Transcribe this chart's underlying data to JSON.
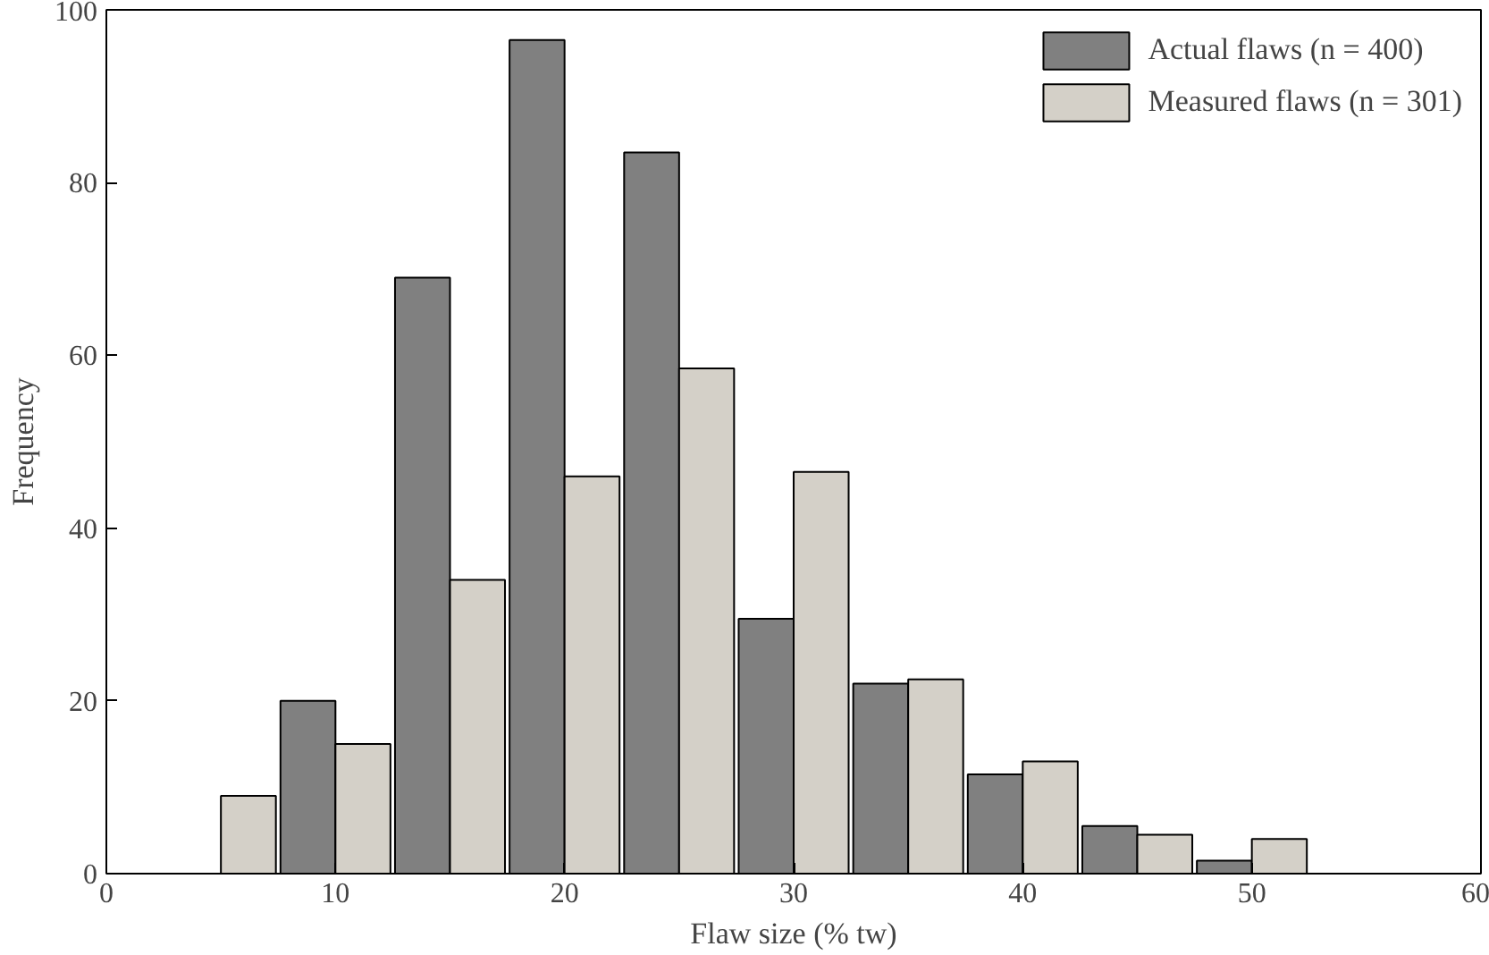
{
  "chart_data": {
    "type": "bar",
    "xlabel": "Flaw size (% tw)",
    "ylabel": "Frequency",
    "x": [
      5,
      10,
      15,
      20,
      25,
      30,
      35,
      40,
      45,
      50
    ],
    "series": [
      {
        "name": "Actual flaws (n = 400)",
        "color": "#808080",
        "values": [
          null,
          20,
          69,
          96.5,
          83.5,
          29.5,
          22,
          11.5,
          5.5,
          1.5
        ]
      },
      {
        "name": "Measured flaws (n = 301)",
        "color": "#d4d0c8",
        "values": [
          9,
          15,
          34,
          46,
          58.5,
          46.5,
          22.5,
          13,
          4.5,
          4
        ]
      }
    ],
    "xlim": [
      0,
      60
    ],
    "xticks": [
      0,
      10,
      20,
      30,
      40,
      50,
      60
    ],
    "ylim": [
      0,
      100
    ],
    "yticks": [
      0,
      20,
      40,
      60,
      80,
      100
    ],
    "grid": false,
    "legend": "top right"
  }
}
